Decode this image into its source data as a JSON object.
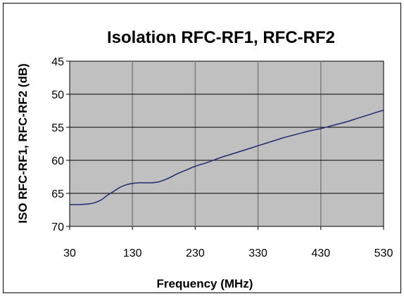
{
  "chart_data": {
    "type": "line",
    "title": "Isolation RFC-RF1, RFC-RF2",
    "xlabel": "Frequency (MHz)",
    "ylabel": "ISO RFC-RF1,  RFC-RF2  (dB)",
    "xlim": [
      30,
      530
    ],
    "ylim": [
      45,
      70
    ],
    "y_reversed": true,
    "x_ticks": [
      "30",
      "130",
      "230",
      "330",
      "430",
      "530"
    ],
    "y_ticks": [
      "45",
      "50",
      "55",
      "60",
      "65",
      "70"
    ],
    "x_tick_values": [
      30,
      130,
      230,
      330,
      430,
      530
    ],
    "y_tick_values": [
      45,
      50,
      55,
      60,
      65,
      70
    ],
    "grid": true,
    "plot_background": "#c0c0c0",
    "line_color": "#1f2a6b",
    "series": [
      {
        "x": [
          30,
          45,
          60,
          70,
          80,
          90,
          100,
          110,
          120,
          130,
          140,
          150,
          160,
          170,
          180,
          190,
          200,
          215,
          230,
          250,
          270,
          290,
          310,
          330,
          350,
          370,
          390,
          410,
          430,
          450,
          470,
          490,
          510,
          530
        ],
        "y": [
          66.7,
          66.7,
          66.6,
          66.4,
          66.0,
          65.3,
          64.7,
          64.1,
          63.7,
          63.5,
          63.4,
          63.4,
          63.4,
          63.3,
          63.0,
          62.6,
          62.1,
          61.5,
          60.9,
          60.3,
          59.6,
          59.0,
          58.4,
          57.8,
          57.2,
          56.6,
          56.1,
          55.6,
          55.2,
          54.7,
          54.2,
          53.6,
          53.0,
          52.4
        ]
      }
    ]
  }
}
